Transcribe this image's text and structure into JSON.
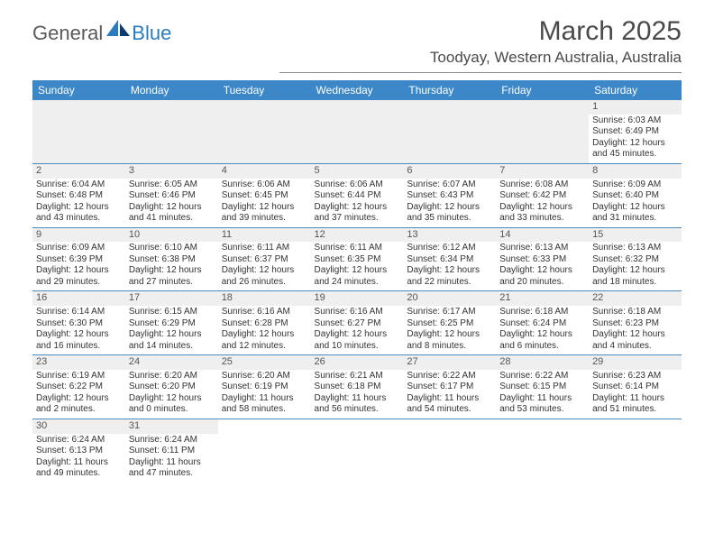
{
  "logo": {
    "general": "General",
    "blue": "Blue"
  },
  "title": "March 2025",
  "location": "Toodyay, Western Australia, Australia",
  "colors": {
    "header_bg": "#3b87c8",
    "header_text": "#ffffff",
    "row_divider": "#4a8bc2",
    "daynum_bg": "#efefef",
    "text": "#333333",
    "logo_gray": "#5a5a5a",
    "logo_blue": "#2b7bbf"
  },
  "weekdays": [
    "Sunday",
    "Monday",
    "Tuesday",
    "Wednesday",
    "Thursday",
    "Friday",
    "Saturday"
  ],
  "days": {
    "1": {
      "sunrise": "6:03 AM",
      "sunset": "6:49 PM",
      "daylight": "12 hours and 45 minutes."
    },
    "2": {
      "sunrise": "6:04 AM",
      "sunset": "6:48 PM",
      "daylight": "12 hours and 43 minutes."
    },
    "3": {
      "sunrise": "6:05 AM",
      "sunset": "6:46 PM",
      "daylight": "12 hours and 41 minutes."
    },
    "4": {
      "sunrise": "6:06 AM",
      "sunset": "6:45 PM",
      "daylight": "12 hours and 39 minutes."
    },
    "5": {
      "sunrise": "6:06 AM",
      "sunset": "6:44 PM",
      "daylight": "12 hours and 37 minutes."
    },
    "6": {
      "sunrise": "6:07 AM",
      "sunset": "6:43 PM",
      "daylight": "12 hours and 35 minutes."
    },
    "7": {
      "sunrise": "6:08 AM",
      "sunset": "6:42 PM",
      "daylight": "12 hours and 33 minutes."
    },
    "8": {
      "sunrise": "6:09 AM",
      "sunset": "6:40 PM",
      "daylight": "12 hours and 31 minutes."
    },
    "9": {
      "sunrise": "6:09 AM",
      "sunset": "6:39 PM",
      "daylight": "12 hours and 29 minutes."
    },
    "10": {
      "sunrise": "6:10 AM",
      "sunset": "6:38 PM",
      "daylight": "12 hours and 27 minutes."
    },
    "11": {
      "sunrise": "6:11 AM",
      "sunset": "6:37 PM",
      "daylight": "12 hours and 26 minutes."
    },
    "12": {
      "sunrise": "6:11 AM",
      "sunset": "6:35 PM",
      "daylight": "12 hours and 24 minutes."
    },
    "13": {
      "sunrise": "6:12 AM",
      "sunset": "6:34 PM",
      "daylight": "12 hours and 22 minutes."
    },
    "14": {
      "sunrise": "6:13 AM",
      "sunset": "6:33 PM",
      "daylight": "12 hours and 20 minutes."
    },
    "15": {
      "sunrise": "6:13 AM",
      "sunset": "6:32 PM",
      "daylight": "12 hours and 18 minutes."
    },
    "16": {
      "sunrise": "6:14 AM",
      "sunset": "6:30 PM",
      "daylight": "12 hours and 16 minutes."
    },
    "17": {
      "sunrise": "6:15 AM",
      "sunset": "6:29 PM",
      "daylight": "12 hours and 14 minutes."
    },
    "18": {
      "sunrise": "6:16 AM",
      "sunset": "6:28 PM",
      "daylight": "12 hours and 12 minutes."
    },
    "19": {
      "sunrise": "6:16 AM",
      "sunset": "6:27 PM",
      "daylight": "12 hours and 10 minutes."
    },
    "20": {
      "sunrise": "6:17 AM",
      "sunset": "6:25 PM",
      "daylight": "12 hours and 8 minutes."
    },
    "21": {
      "sunrise": "6:18 AM",
      "sunset": "6:24 PM",
      "daylight": "12 hours and 6 minutes."
    },
    "22": {
      "sunrise": "6:18 AM",
      "sunset": "6:23 PM",
      "daylight": "12 hours and 4 minutes."
    },
    "23": {
      "sunrise": "6:19 AM",
      "sunset": "6:22 PM",
      "daylight": "12 hours and 2 minutes."
    },
    "24": {
      "sunrise": "6:20 AM",
      "sunset": "6:20 PM",
      "daylight": "12 hours and 0 minutes."
    },
    "25": {
      "sunrise": "6:20 AM",
      "sunset": "6:19 PM",
      "daylight": "11 hours and 58 minutes."
    },
    "26": {
      "sunrise": "6:21 AM",
      "sunset": "6:18 PM",
      "daylight": "11 hours and 56 minutes."
    },
    "27": {
      "sunrise": "6:22 AM",
      "sunset": "6:17 PM",
      "daylight": "11 hours and 54 minutes."
    },
    "28": {
      "sunrise": "6:22 AM",
      "sunset": "6:15 PM",
      "daylight": "11 hours and 53 minutes."
    },
    "29": {
      "sunrise": "6:23 AM",
      "sunset": "6:14 PM",
      "daylight": "11 hours and 51 minutes."
    },
    "30": {
      "sunrise": "6:24 AM",
      "sunset": "6:13 PM",
      "daylight": "11 hours and 49 minutes."
    },
    "31": {
      "sunrise": "6:24 AM",
      "sunset": "6:11 PM",
      "daylight": "11 hours and 47 minutes."
    }
  },
  "grid": [
    [
      null,
      null,
      null,
      null,
      null,
      null,
      "1"
    ],
    [
      "2",
      "3",
      "4",
      "5",
      "6",
      "7",
      "8"
    ],
    [
      "9",
      "10",
      "11",
      "12",
      "13",
      "14",
      "15"
    ],
    [
      "16",
      "17",
      "18",
      "19",
      "20",
      "21",
      "22"
    ],
    [
      "23",
      "24",
      "25",
      "26",
      "27",
      "28",
      "29"
    ],
    [
      "30",
      "31",
      null,
      null,
      null,
      null,
      null
    ]
  ],
  "labels": {
    "sunrise_prefix": "Sunrise: ",
    "sunset_prefix": "Sunset: ",
    "daylight_prefix": "Daylight: "
  }
}
